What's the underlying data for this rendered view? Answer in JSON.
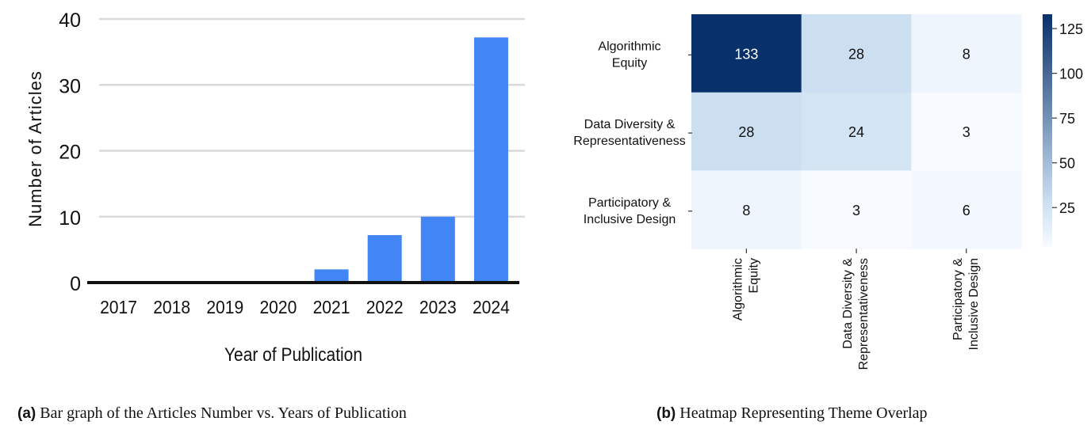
{
  "chart_data": [
    {
      "type": "bar",
      "categories": [
        "2017",
        "2018",
        "2019",
        "2020",
        "2021",
        "2022",
        "2023",
        "2024"
      ],
      "values": [
        0,
        0,
        0,
        0,
        2,
        7.2,
        10,
        37.2
      ],
      "xlabel": "Year of Publication",
      "ylabel": "Number of Articles",
      "ylim": [
        0,
        40
      ],
      "yticks": [
        "0",
        "10",
        "20",
        "30",
        "40"
      ],
      "grid": true,
      "colors": {
        "bar": "#4285f4",
        "grid": "#d9d9d9",
        "axis": "#111111"
      }
    },
    {
      "type": "heatmap",
      "rows": [
        "Algorithmic Equity",
        "Data Diversity & Representativeness",
        "Participatory & Inclusive Design"
      ],
      "cols": [
        "Algorithmic Equity",
        "Data Diversity & Representativeness",
        "Participatory & Inclusive Design"
      ],
      "values": [
        [
          133,
          28,
          8
        ],
        [
          28,
          24,
          3
        ],
        [
          8,
          3,
          6
        ]
      ],
      "colorbar": {
        "ticks": [
          "25",
          "50",
          "75",
          "100",
          "125"
        ],
        "min": 3,
        "max": 133
      },
      "colors": {
        "low": "#f7fbff",
        "mid": "#c6dbef",
        "high": "#08306b"
      }
    }
  ],
  "captions": {
    "a_tag": "(a)",
    "a_text": "Bar graph of the Articles Number vs. Years of Publication",
    "b_tag": "(b)",
    "b_text": "Heatmap Representing Theme Overlap"
  }
}
